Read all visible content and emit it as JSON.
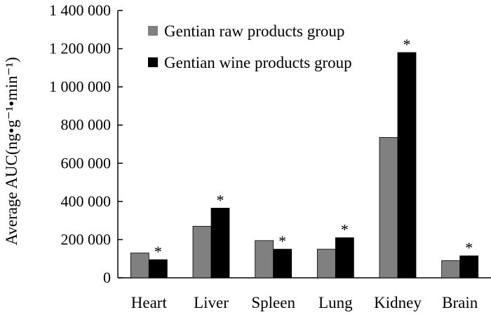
{
  "chart_data": {
    "type": "bar",
    "categories": [
      "Heart",
      "Liver",
      "Spleen",
      "Lung",
      "Kidney",
      "Brain"
    ],
    "series": [
      {
        "name": "Gentian raw products group",
        "color": "#808080",
        "values": [
          130000,
          270000,
          195000,
          150000,
          735000,
          90000
        ]
      },
      {
        "name": "Gentian wine products group",
        "color": "#000000",
        "values": [
          95000,
          365000,
          150000,
          210000,
          1180000,
          115000
        ]
      }
    ],
    "significance_marker": "*",
    "significant": [
      true,
      true,
      true,
      true,
      true,
      true
    ],
    "ylabel": "Average AUC(ng•g⁻¹•min⁻¹)",
    "ylim": [
      0,
      1400000
    ],
    "yticks": [
      0,
      200000,
      400000,
      600000,
      800000,
      1000000,
      1200000,
      1400000
    ],
    "ytick_labels": [
      "0",
      "200 000",
      "400 000",
      "600 000",
      "800 000",
      "1 000 000",
      "1 200 000",
      "1 400 000"
    ],
    "legend_position": "top-left",
    "grid": false
  }
}
